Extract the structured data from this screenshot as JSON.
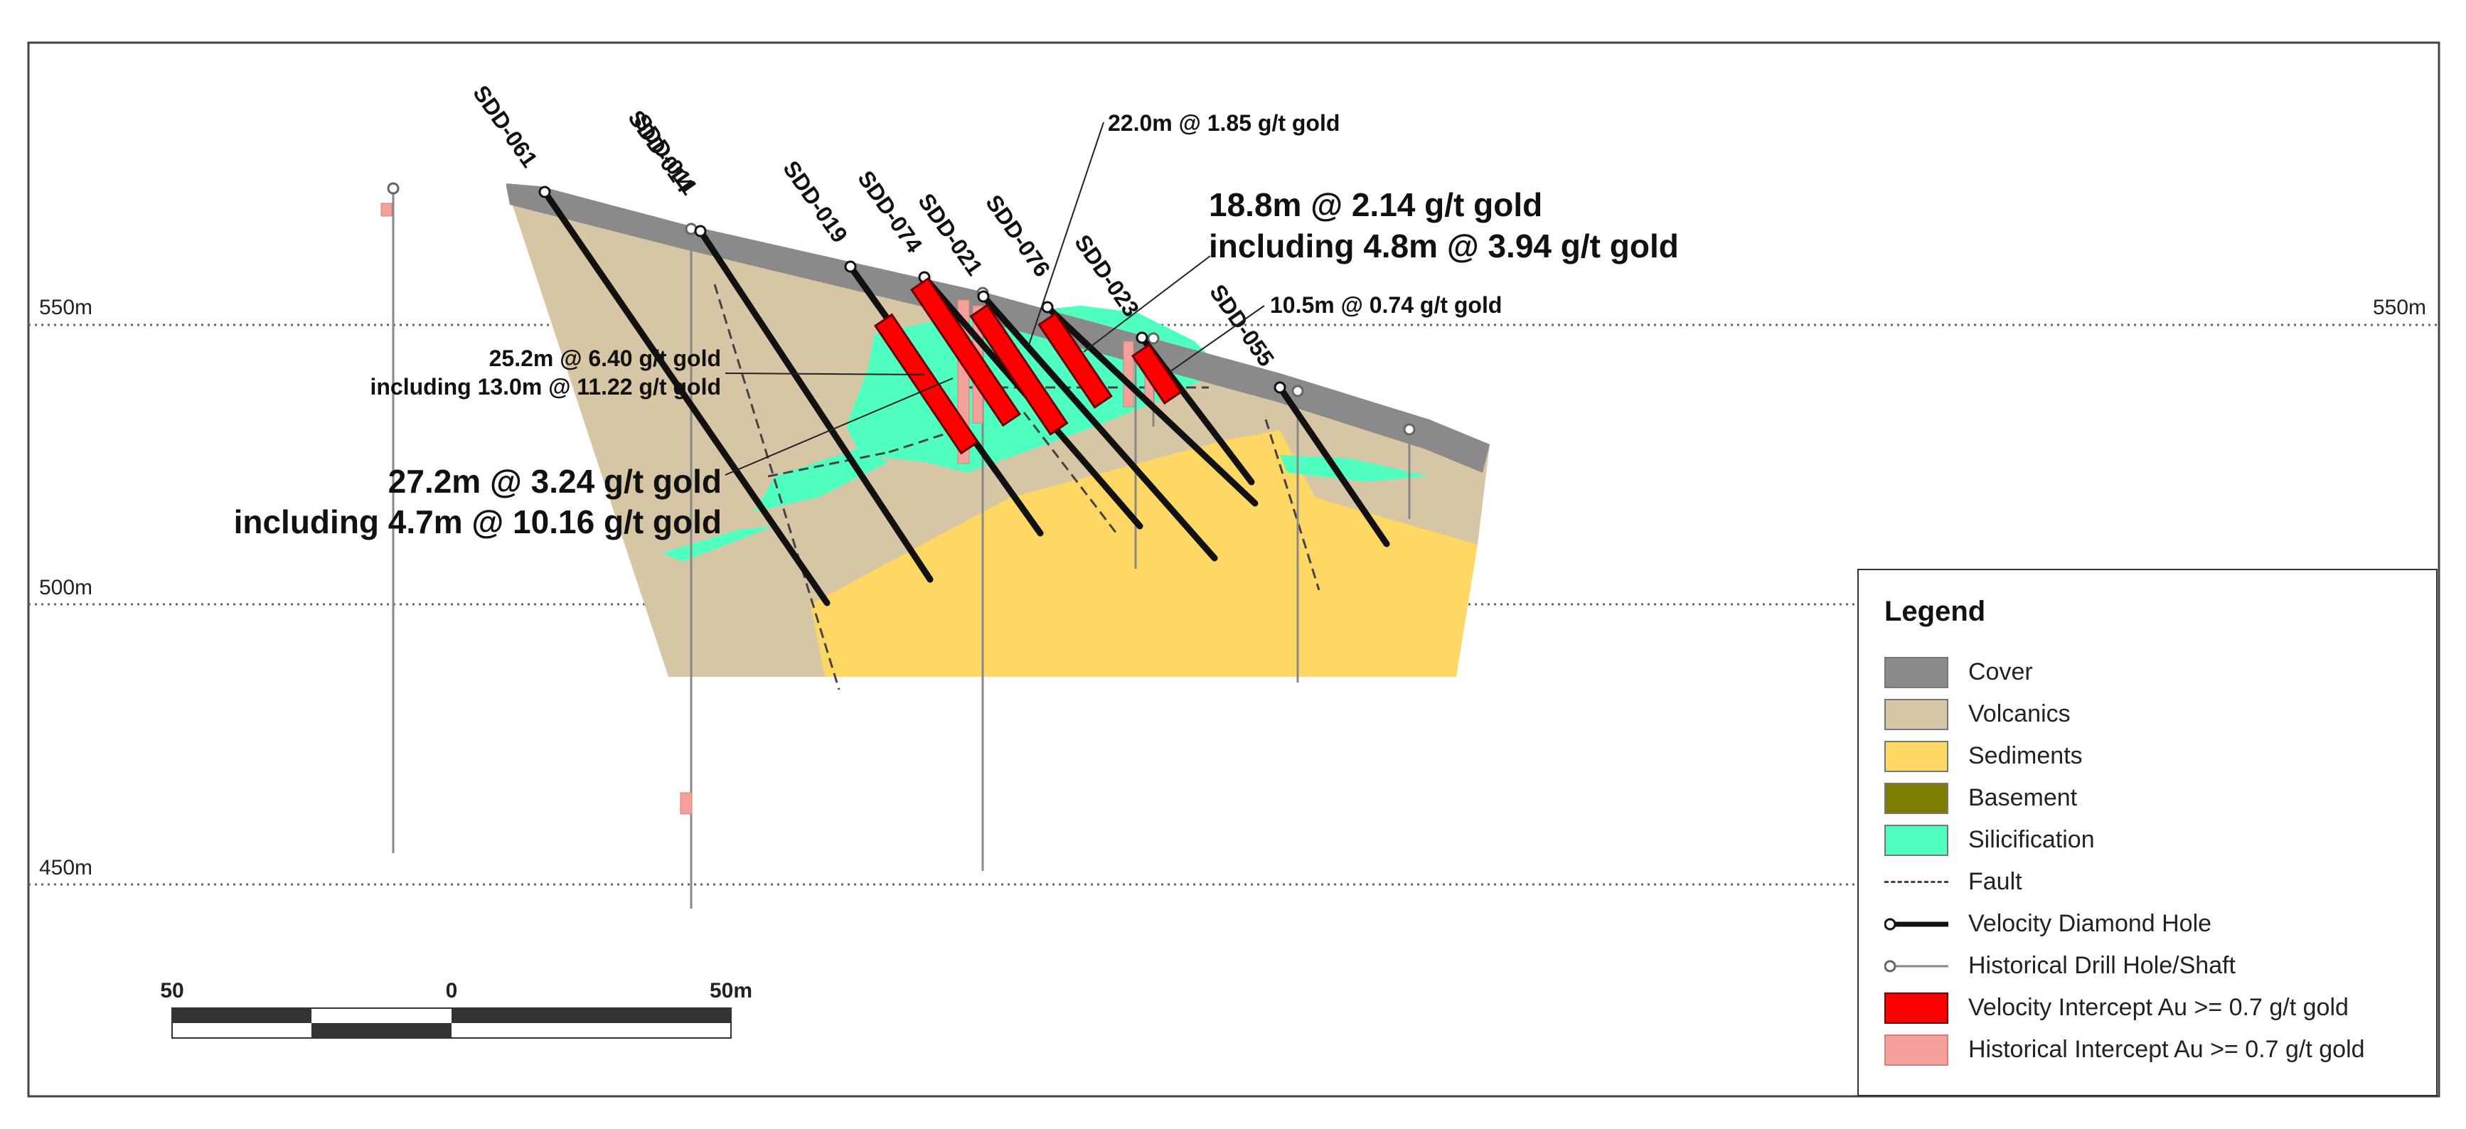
{
  "colors": {
    "cover": "#8a8a8a",
    "volcanics": "#d7c6a6",
    "sediments": "#fed764",
    "basement": "#7d7d00",
    "silicification": "#4fffc0",
    "fault": "#444444",
    "velocity_hole": "#111111",
    "historical_hole": "#777777",
    "velocity_intercept": "#ff0000",
    "historical_intercept": "#f4a09b"
  },
  "elevation_labels": [
    {
      "id": "550m",
      "left": "550m",
      "right": "550m"
    },
    {
      "id": "500m",
      "left": "500m"
    },
    {
      "id": "450m",
      "left": "450m"
    }
  ],
  "holes": [
    "SDD-061",
    "SDD-014",
    "SDD-011",
    "SDD-019",
    "SDD-074",
    "SDD-021",
    "SDD-076",
    "SDD-023",
    "SDD-055"
  ],
  "annotations": {
    "a1": "22.0m @ 1.85 g/t gold",
    "a2_line1": "18.8m @ 2.14 g/t gold",
    "a2_line2": "including 4.8m @ 3.94 g/t gold",
    "a3": "10.5m @ 0.74 g/t gold",
    "a4_line1": "25.2m @ 6.40 g/t gold",
    "a4_line2": "including 13.0m @ 11.22 g/t gold",
    "a5_line1": "27.2m @ 3.24 g/t gold",
    "a5_line2": "including 4.7m @ 10.16 g/t gold"
  },
  "scale_bar": {
    "labels": [
      "50",
      "0",
      "50m"
    ]
  },
  "legend": {
    "title": "Legend",
    "items": [
      {
        "label": "Cover",
        "icon": "swatch"
      },
      {
        "label": "Volcanics",
        "icon": "swatch"
      },
      {
        "label": "Sediments",
        "icon": "swatch"
      },
      {
        "label": "Basement",
        "icon": "swatch"
      },
      {
        "label": "Silicification",
        "icon": "swatch"
      },
      {
        "label": "Fault",
        "icon": "dashed-line"
      },
      {
        "label": "Velocity Diamond Hole",
        "icon": "thick-line-with-collar"
      },
      {
        "label": "Historical Drill Hole/Shaft",
        "icon": "thin-line-with-collar"
      },
      {
        "label": "Velocity Intercept Au >= 0.7 g/t gold",
        "icon": "swatch"
      },
      {
        "label": "Historical Intercept Au >= 0.7 g/t gold",
        "icon": "swatch"
      }
    ]
  }
}
